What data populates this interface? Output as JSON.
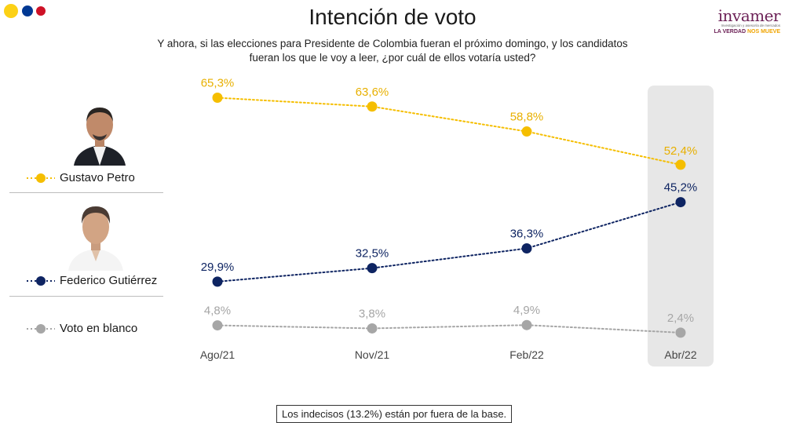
{
  "header": {
    "title": "Intención de voto",
    "subtitle_line1": "Y ahora, si las elecciones para Presidente de Colombia fueran el próximo domingo, y los candidatos",
    "subtitle_line2": "fueran los que le voy a leer, ¿por cuál de ellos votaría usted?"
  },
  "brand": {
    "name": "invamer",
    "tagline": "Investigación y asesoría de mercados",
    "slogan_main": "LA VERDAD",
    "slogan_accent": "NOS MUEVE"
  },
  "flag_colors": [
    "#FCD116",
    "#003893",
    "#CE1126"
  ],
  "legend": [
    {
      "label": "Gustavo Petro",
      "color": "#F5BE00"
    },
    {
      "label": "Federico Gutiérrez",
      "color": "#0E2462"
    },
    {
      "label": "Voto en blanco",
      "color": "#A6A6A6"
    }
  ],
  "chart_data": {
    "type": "line",
    "x": [
      "Ago/21",
      "Nov/21",
      "Feb/22",
      "Abr/22"
    ],
    "highlighted_category": "Abr/22",
    "series": [
      {
        "name": "Gustavo Petro",
        "color": "#F5BE00",
        "values": [
          65.3,
          63.6,
          58.8,
          52.4
        ],
        "labels": [
          "65,3%",
          "63,6%",
          "58,8%",
          "52,4%"
        ]
      },
      {
        "name": "Federico Gutiérrez",
        "color": "#0E2462",
        "values": [
          29.9,
          32.5,
          36.3,
          45.2
        ],
        "labels": [
          "29,9%",
          "32,5%",
          "36,3%",
          "45,2%"
        ]
      },
      {
        "name": "Voto en blanco",
        "color": "#A6A6A6",
        "values": [
          4.8,
          3.8,
          4.9,
          2.4
        ],
        "labels": [
          "4,8%",
          "3,8%",
          "4,9%",
          "2,4%"
        ]
      }
    ],
    "grid": false,
    "legend_position": "left"
  },
  "footnote": "Los indecisos (13.2%) están por fuera de la base."
}
